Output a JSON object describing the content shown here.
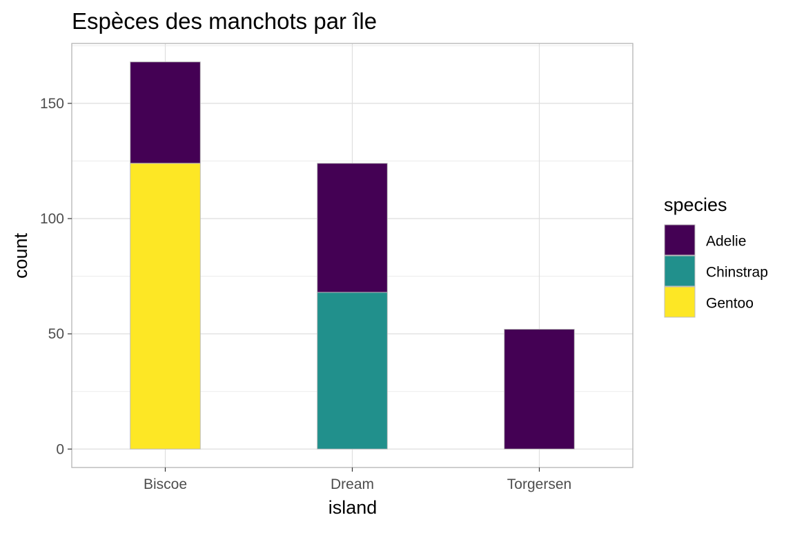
{
  "chart_data": {
    "type": "bar",
    "stacked": true,
    "title": "Espèces des manchots par île",
    "xlabel": "island",
    "ylabel": "count",
    "categories": [
      "Biscoe",
      "Dream",
      "Torgersen"
    ],
    "ylim": [
      -8,
      176
    ],
    "yticks": [
      0,
      50,
      100,
      150
    ],
    "grid": true,
    "legend": {
      "title": "species",
      "position": "right"
    },
    "series": [
      {
        "name": "Gentoo",
        "color": "#FDE725",
        "values": [
          124,
          0,
          0
        ]
      },
      {
        "name": "Chinstrap",
        "color": "#21908C",
        "values": [
          0,
          68,
          0
        ]
      },
      {
        "name": "Adelie",
        "color": "#440154",
        "values": [
          44,
          56,
          52
        ]
      }
    ],
    "legend_order": [
      "Adelie",
      "Chinstrap",
      "Gentoo"
    ]
  }
}
